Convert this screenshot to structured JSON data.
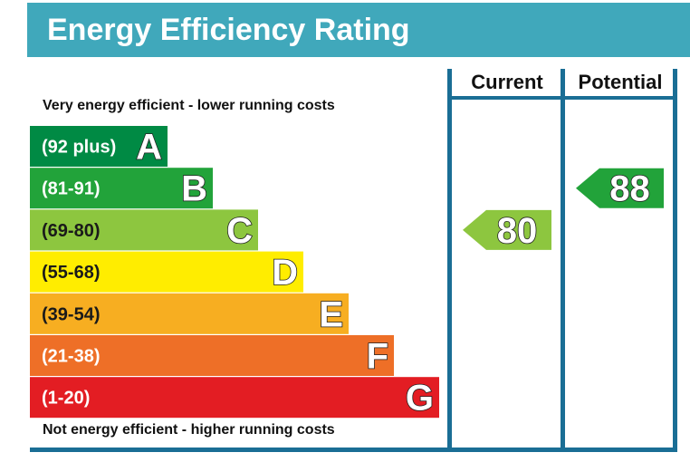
{
  "title": "Energy Efficiency Rating",
  "captions": {
    "top": "Very energy efficient - lower running costs",
    "bottom": "Not energy efficient - higher running costs"
  },
  "columns": {
    "current": "Current",
    "potential": "Potential"
  },
  "colors": {
    "header": "#40a8bb",
    "frame": "#1a6e95",
    "letter_outline": "#222222"
  },
  "chart_data": {
    "type": "bar",
    "title": "Energy Efficiency Rating",
    "bands": [
      {
        "letter": "A",
        "range": "(92 plus)",
        "color": "#008a44"
      },
      {
        "letter": "B",
        "range": "(81-91)",
        "color": "#22a33a"
      },
      {
        "letter": "C",
        "range": "(69-80)",
        "color": "#8dc63f"
      },
      {
        "letter": "D",
        "range": "(55-68)",
        "color": "#ffed00"
      },
      {
        "letter": "E",
        "range": "(39-54)",
        "color": "#f7ae21"
      },
      {
        "letter": "F",
        "range": "(21-38)",
        "color": "#ee6f27"
      },
      {
        "letter": "G",
        "range": "(1-20)",
        "color": "#e31d23"
      }
    ],
    "current": {
      "value": 80,
      "band": "C",
      "color": "#8dc63f"
    },
    "potential": {
      "value": 88,
      "band": "B",
      "color": "#22a33a"
    }
  }
}
